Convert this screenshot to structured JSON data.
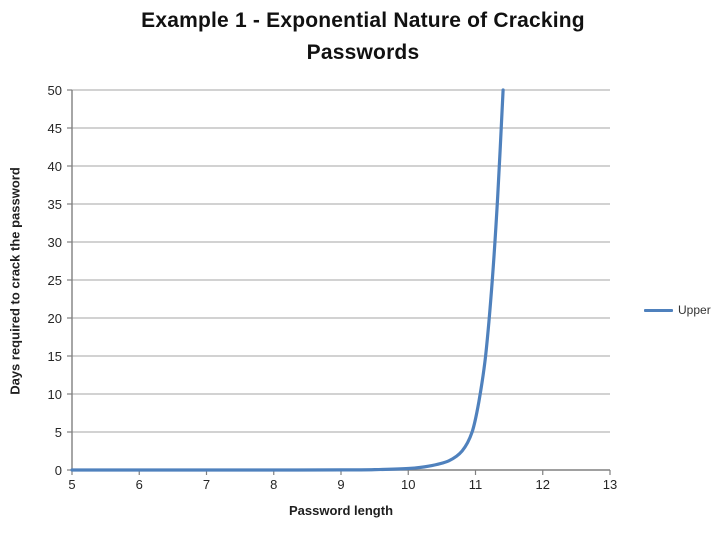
{
  "chart_data": {
    "type": "line",
    "title": "Example 1 - Exponential Nature of Cracking Passwords",
    "title_lines": [
      "Example 1 - Exponential Nature of Cracking",
      "Passwords"
    ],
    "xlabel": "Password length",
    "ylabel": "Days required to crack the password",
    "xlim": [
      5,
      13
    ],
    "ylim": [
      0,
      50
    ],
    "x_ticks": [
      5,
      6,
      7,
      8,
      9,
      10,
      11,
      12,
      13
    ],
    "y_ticks": [
      0,
      5,
      10,
      15,
      20,
      25,
      30,
      35,
      40,
      45,
      50
    ],
    "grid": "horizontal-only",
    "legend_position": "right",
    "series": [
      {
        "name": "Upper",
        "color": "#4F81BD",
        "points": [
          [
            5,
            0
          ],
          [
            6,
            0
          ],
          [
            7,
            0
          ],
          [
            8,
            0
          ],
          [
            9,
            0.01
          ],
          [
            9.5,
            0.05
          ],
          [
            10,
            0.2
          ],
          [
            10.3,
            0.5
          ],
          [
            10.6,
            1.2
          ],
          [
            10.8,
            2.5
          ],
          [
            10.95,
            5
          ],
          [
            11.05,
            9
          ],
          [
            11.15,
            15
          ],
          [
            11.25,
            25
          ],
          [
            11.33,
            36
          ],
          [
            11.41,
            50
          ]
        ],
        "note": "curve is clipped at the 50-day axis maximum near password length 11.4"
      }
    ],
    "colors": {
      "gridline": "#A6A6A6",
      "axis": "#808080",
      "tick_text": "#262626",
      "title_text": "#111111"
    }
  }
}
